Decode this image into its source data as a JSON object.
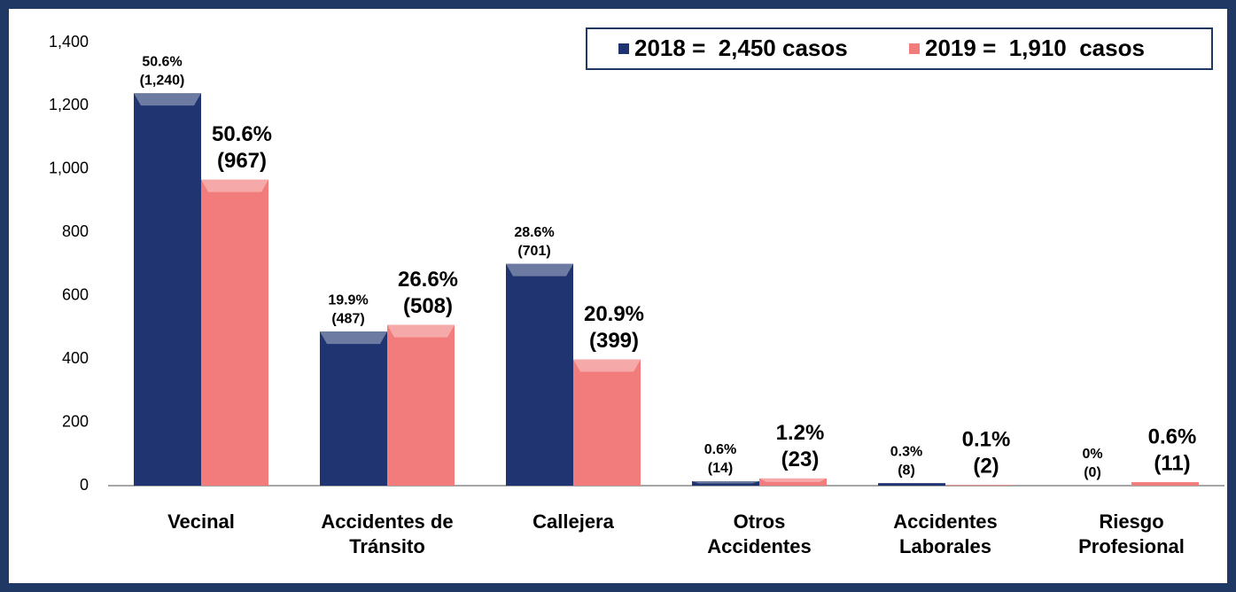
{
  "chart_data": {
    "type": "bar",
    "categories": [
      "Vecinal",
      "Accidentes de\nTránsito",
      "Callejera",
      "Otros\nAccidentes",
      "Accidentes\nLaborales",
      "Riesgo\nProfesional"
    ],
    "series": [
      {
        "name": "2018 =  2,450 casos",
        "color": "#1f3470",
        "values": [
          1240,
          487,
          701,
          14,
          8,
          0
        ],
        "value_labels": [
          "(1,240)",
          "(487)",
          "(701)",
          "(14)",
          "(8)",
          "(0)"
        ],
        "percent_labels": [
          "50.6%",
          "19.9%",
          "28.6%",
          "0.6%",
          "0.3%",
          "0%"
        ]
      },
      {
        "name": "2019 =  1,910  casos",
        "color": "#f27b7b",
        "values": [
          967,
          508,
          399,
          23,
          2,
          11
        ],
        "value_labels": [
          "(967)",
          "(508)",
          "(399)",
          "(23)",
          "(2)",
          "(11)"
        ],
        "percent_labels": [
          "50.6%",
          "26.6%",
          "20.9%",
          "1.2%",
          "0.1%",
          "0.6%"
        ]
      }
    ],
    "ylim": [
      0,
      1400
    ],
    "yticks": [
      0,
      200,
      400,
      600,
      800,
      {
        "value": 1000,
        "label": "1,000"
      },
      {
        "value": 1200,
        "label": "1,200"
      },
      {
        "value": 1400,
        "label": "1,400"
      }
    ],
    "grid": false,
    "legend": "upper right"
  }
}
